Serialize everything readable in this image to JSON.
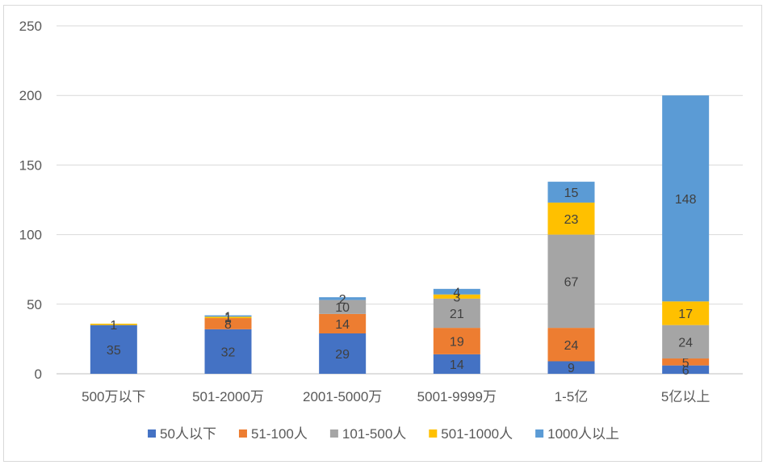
{
  "chart_data": {
    "type": "bar",
    "stacked": true,
    "categories": [
      "500万以下",
      "501-2000万",
      "2001-5000万",
      "5001-9999万",
      "1-5亿",
      "5亿以上"
    ],
    "series": [
      {
        "name": "50人以下",
        "color": "#4472c4",
        "values": [
          35,
          32,
          29,
          14,
          9,
          6
        ]
      },
      {
        "name": "51-100人",
        "color": "#ed7d31",
        "values": [
          0,
          8,
          14,
          19,
          24,
          5
        ]
      },
      {
        "name": "101-500人",
        "color": "#a5a5a5",
        "values": [
          0,
          0,
          10,
          21,
          67,
          24
        ]
      },
      {
        "name": "501-1000人",
        "color": "#ffc000",
        "values": [
          1,
          1,
          0,
          3,
          23,
          17
        ]
      },
      {
        "name": "1000人以上",
        "color": "#5b9bd5",
        "values": [
          0,
          1,
          2,
          4,
          15,
          148
        ]
      }
    ],
    "ylim": [
      0,
      250
    ],
    "yticks": [
      0,
      50,
      100,
      150,
      200,
      250
    ],
    "grid": true,
    "legend_position": "bottom",
    "title": "",
    "xlabel": "",
    "ylabel": ""
  }
}
